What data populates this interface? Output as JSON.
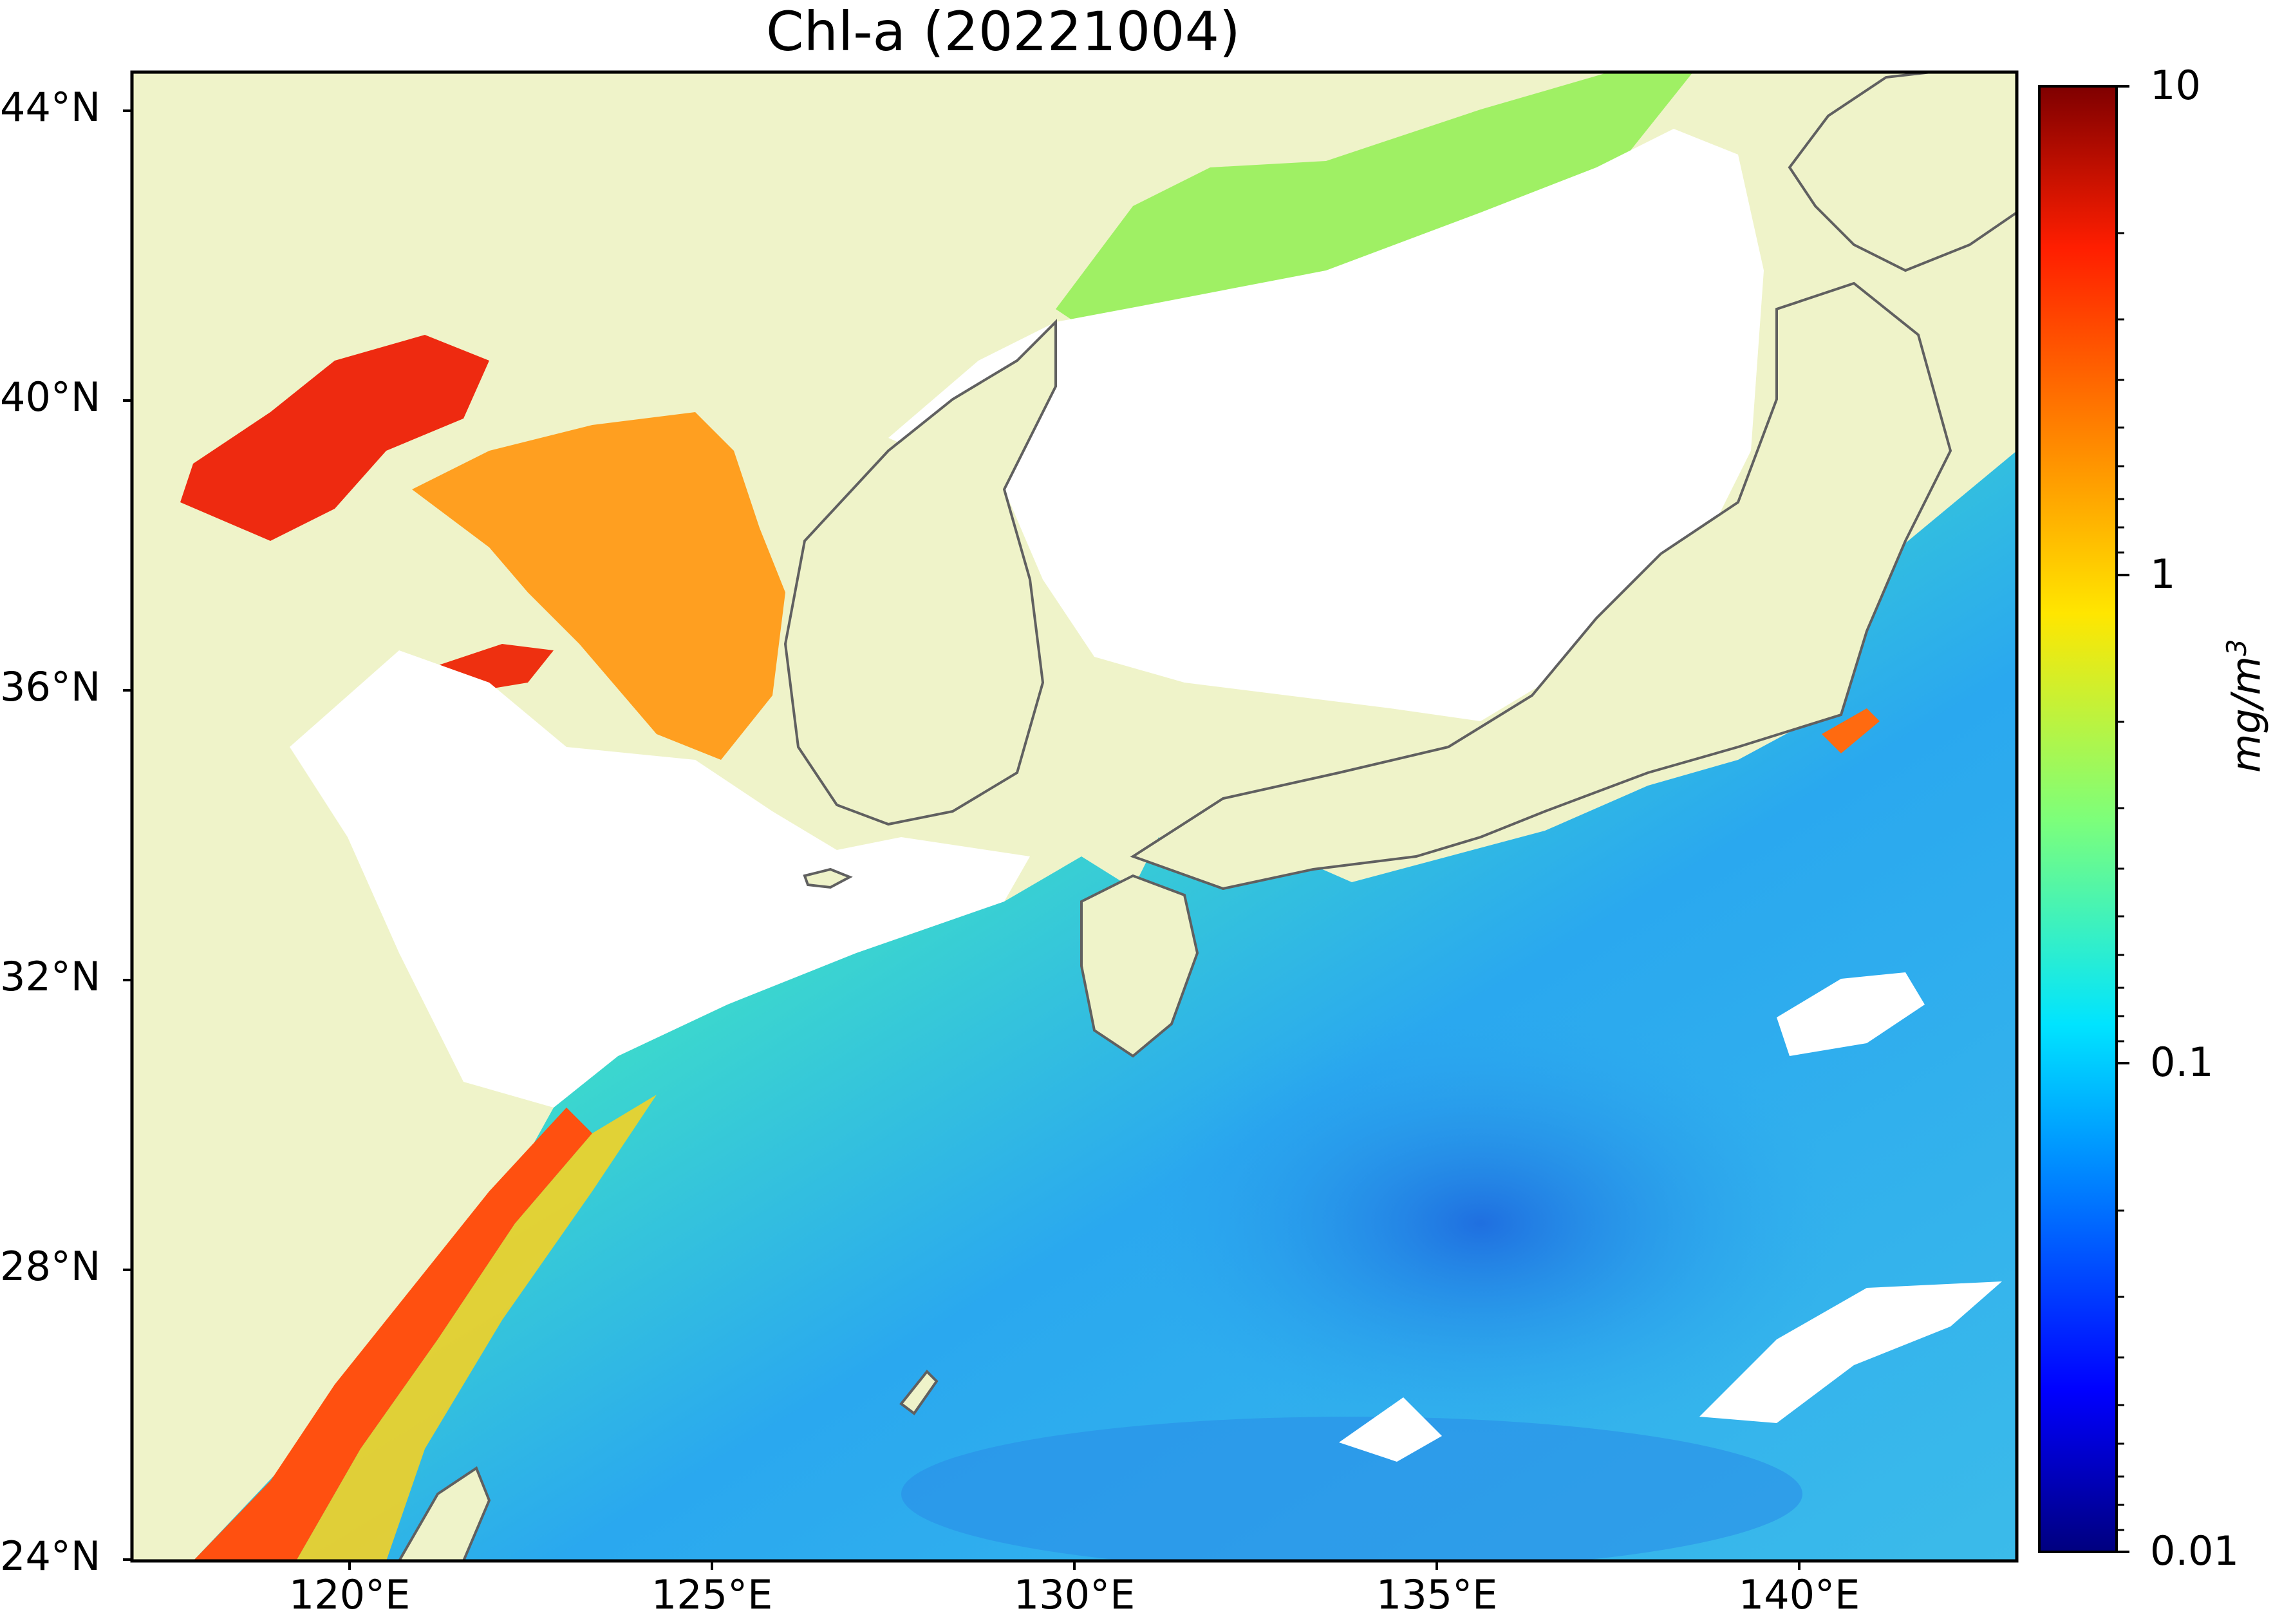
{
  "title": "Chl-a (20221004)",
  "map": {
    "variable": "Chl-a",
    "date": "20221004",
    "lat_range": [
      24,
      44.5
    ],
    "lon_range": [
      117,
      143
    ],
    "land_color": "#eff3c9",
    "coastline_color": "#606060",
    "no_data_color": "#ffffff",
    "lat_labels": [
      "44°N",
      "40°N",
      "36°N",
      "32°N",
      "28°N",
      "24°N"
    ],
    "lon_labels": [
      "120°E",
      "125°E",
      "130°E",
      "135°E",
      "140°E"
    ]
  },
  "colorbar": {
    "colormap": "jet",
    "scale": "log",
    "range": [
      0.01,
      10
    ],
    "tick_labels": [
      "10",
      "1",
      "0.1",
      "0.01"
    ],
    "unit_prefix": "mg/m",
    "unit_exp": "3"
  }
}
